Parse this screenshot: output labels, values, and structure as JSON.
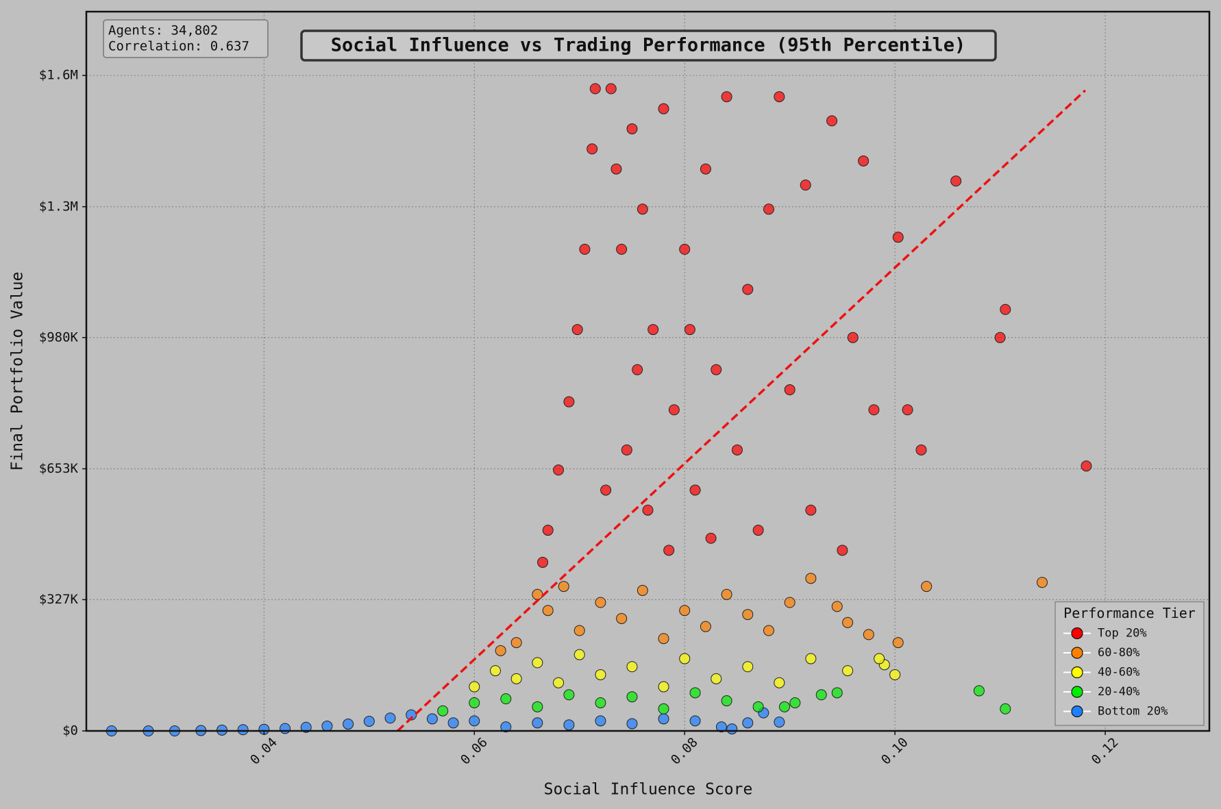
{
  "chart_data": {
    "type": "scatter",
    "title": "Social Influence vs Trading Performance (95th Percentile)",
    "xlabel": "Social Influence Score",
    "ylabel": "Final Portfolio Value",
    "annotations": [
      "Agents: 34,802",
      "Correlation: 0.637"
    ],
    "legend_title": "Performance Tier",
    "legend": "lower right",
    "grid": true,
    "xlim": [
      0.0231,
      0.1299
    ],
    "ylim": [
      0,
      1792000
    ],
    "xticks": [
      0.04,
      0.06,
      0.08,
      {
        "value": 0.1,
        "label": "0.10"
      },
      0.12
    ],
    "yticks": [
      {
        "value": 0,
        "label": "$0"
      },
      {
        "value": 327000,
        "label": "$327K"
      },
      {
        "value": 653000,
        "label": "$653K"
      },
      {
        "value": 980000,
        "label": "$980K"
      },
      {
        "value": 1306000,
        "label": "$1.3M"
      },
      {
        "value": 1633000,
        "label": "$1.6M"
      }
    ],
    "trend": {
      "color": "#ee1111",
      "x": [
        0.0527,
        0.1181
      ],
      "values": [
        0,
        1596000
      ]
    },
    "series": [
      {
        "name": "Top 20%",
        "color": "#ff0000",
        "x": [
          0.0715,
          0.0712,
          0.0705,
          0.0698,
          0.069,
          0.068,
          0.067,
          0.0665,
          0.073,
          0.0735,
          0.074,
          0.075,
          0.076,
          0.077,
          0.078,
          0.079,
          0.08,
          0.081,
          0.082,
          0.083,
          0.084,
          0.085,
          0.086,
          0.087,
          0.088,
          0.089,
          0.09,
          0.0915,
          0.092,
          0.094,
          0.095,
          0.096,
          0.097,
          0.098,
          0.1003,
          0.1012,
          0.1025,
          0.1058,
          0.11,
          0.1105,
          0.1182,
          0.0745,
          0.0755,
          0.0725,
          0.0785,
          0.0825,
          0.0765,
          0.0805
        ],
        "values": [
          1600000,
          1450000,
          1200000,
          1000000,
          820000,
          650000,
          500000,
          420000,
          1600000,
          1400000,
          1200000,
          1500000,
          1300000,
          1000000,
          1550000,
          800000,
          1200000,
          600000,
          1400000,
          900000,
          1580000,
          700000,
          1100000,
          500000,
          1300000,
          1580000,
          850000,
          1360000,
          550000,
          1520000,
          450000,
          980000,
          1420000,
          800000,
          1230000,
          800000,
          700000,
          1370000,
          980000,
          1050000,
          660000,
          700000,
          900000,
          600000,
          450000,
          480000,
          550000,
          1000000
        ]
      },
      {
        "name": "60-80%",
        "color": "#ff8000",
        "x": [
          0.066,
          0.067,
          0.0685,
          0.07,
          0.072,
          0.074,
          0.076,
          0.078,
          0.08,
          0.082,
          0.084,
          0.086,
          0.088,
          0.09,
          0.092,
          0.0945,
          0.0955,
          0.0975,
          0.1003,
          0.103,
          0.114,
          0.064,
          0.0625
        ],
        "values": [
          340000,
          300000,
          360000,
          250000,
          320000,
          280000,
          350000,
          230000,
          300000,
          260000,
          340000,
          290000,
          250000,
          320000,
          380000,
          310000,
          270000,
          240000,
          220000,
          360000,
          370000,
          220000,
          200000
        ]
      },
      {
        "name": "40-60%",
        "color": "#ffff00",
        "x": [
          0.06,
          0.062,
          0.064,
          0.066,
          0.068,
          0.07,
          0.072,
          0.075,
          0.078,
          0.08,
          0.083,
          0.086,
          0.089,
          0.092,
          0.0955,
          0.099,
          0.1,
          0.0985
        ],
        "values": [
          110000,
          150000,
          130000,
          170000,
          120000,
          190000,
          140000,
          160000,
          110000,
          180000,
          130000,
          160000,
          120000,
          180000,
          150000,
          165000,
          140000,
          180000
        ]
      },
      {
        "name": "20-40%",
        "color": "#00ee00",
        "x": [
          0.057,
          0.06,
          0.063,
          0.066,
          0.069,
          0.072,
          0.075,
          0.078,
          0.081,
          0.084,
          0.087,
          0.0905,
          0.093,
          0.0945,
          0.108,
          0.1105,
          0.0895
        ],
        "values": [
          50000,
          70000,
          80000,
          60000,
          90000,
          70000,
          85000,
          55000,
          95000,
          75000,
          60000,
          70000,
          90000,
          95000,
          100000,
          55000,
          60000
        ]
      },
      {
        "name": "Bottom 20%",
        "color": "#1e7fff",
        "x": [
          0.0255,
          0.029,
          0.0315,
          0.034,
          0.036,
          0.038,
          0.04,
          0.042,
          0.044,
          0.046,
          0.048,
          0.05,
          0.052,
          0.054,
          0.056,
          0.058,
          0.06,
          0.063,
          0.066,
          0.069,
          0.072,
          0.075,
          0.078,
          0.081,
          0.0835,
          0.086,
          0.0875,
          0.089,
          0.0845
        ],
        "values": [
          0,
          0,
          0,
          1000,
          2000,
          3000,
          4000,
          6000,
          9000,
          12000,
          17000,
          24000,
          32000,
          40000,
          30000,
          20000,
          25000,
          10000,
          20000,
          15000,
          25000,
          18000,
          30000,
          25000,
          10000,
          20000,
          45000,
          22000,
          5000
        ]
      }
    ]
  }
}
